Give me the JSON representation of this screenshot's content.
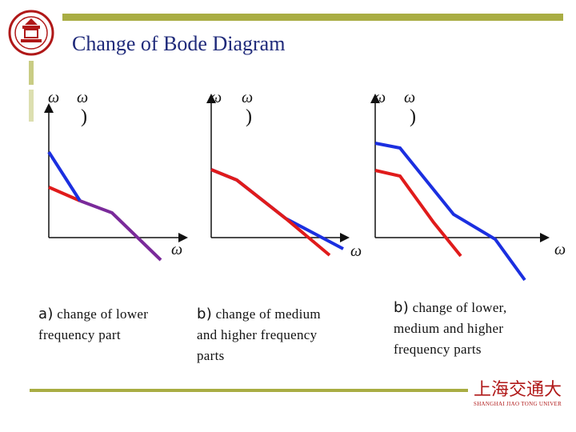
{
  "header": {
    "title": "Change of Bode Diagram"
  },
  "panels": [
    {
      "caption_label": "a)",
      "caption_lines": [
        "change of lower",
        "frequency part"
      ],
      "axis_y_symbol": "ω",
      "axis_y_paren": ")",
      "axis_x_symbol": "ω"
    },
    {
      "caption_label": "b)",
      "caption_lines": [
        "change of medium",
        "and higher frequency",
        "parts"
      ],
      "axis_y_symbol": "ω",
      "axis_y_paren": ")",
      "axis_x_symbol": "ω"
    },
    {
      "caption_label": "b)",
      "caption_lines": [
        "change of lower,",
        "medium and higher",
        "frequency parts"
      ],
      "axis_y_symbol": "ω",
      "axis_y_paren": ")",
      "axis_x_symbol": "ω"
    }
  ],
  "footer": {
    "logo_text_cn": "上海交通大學",
    "logo_text_en": "SHANGHAI JIAO TONG UNIVERSITY"
  },
  "colors": {
    "accent": "#a9ad43",
    "title": "#1f2a7a",
    "original_curve": "#e01b1b",
    "changed_curve": "#1b2fe0",
    "overlap_curve": "#7a2a9a"
  }
}
